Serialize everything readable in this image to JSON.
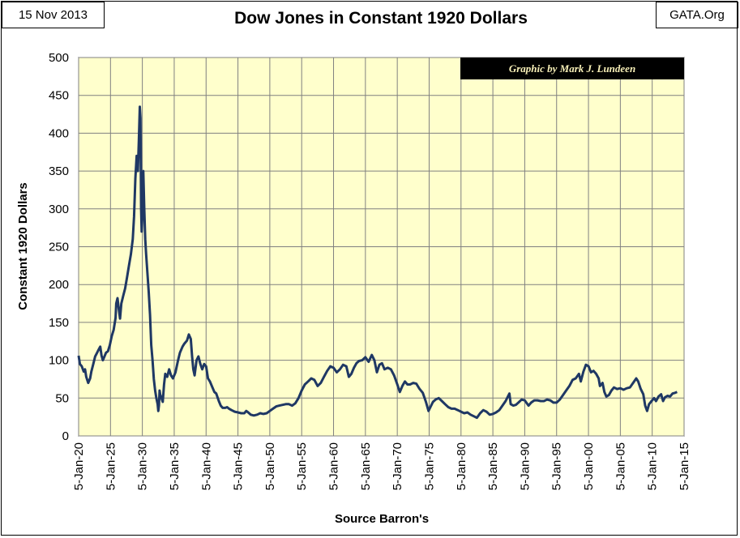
{
  "header": {
    "date": "15 Nov 2013",
    "source": "GATA.Org",
    "title": "Dow Jones in Constant 1920 Dollars"
  },
  "credit": "Graphic by Mark J. Lundeen",
  "colors": {
    "plot_background": "#ffffcc",
    "line": "#1f3864",
    "grid": "#808080",
    "credit_box": "#000000"
  },
  "chart_data": {
    "type": "line",
    "title": "Dow Jones in Constant 1920 Dollars",
    "xlabel": "Source Barron's",
    "ylabel": "Constant 1920 Dollars",
    "xlim": [
      1920,
      2015
    ],
    "ylim": [
      0,
      500
    ],
    "yticks": [
      0,
      50,
      100,
      150,
      200,
      250,
      300,
      350,
      400,
      450,
      500
    ],
    "xticks": [
      {
        "x": 1920,
        "label": "5-Jan-20"
      },
      {
        "x": 1925,
        "label": "5-Jan-25"
      },
      {
        "x": 1930,
        "label": "5-Jan-30"
      },
      {
        "x": 1935,
        "label": "5-Jan-35"
      },
      {
        "x": 1940,
        "label": "5-Jan-40"
      },
      {
        "x": 1945,
        "label": "5-Jan-45"
      },
      {
        "x": 1950,
        "label": "5-Jan-50"
      },
      {
        "x": 1955,
        "label": "5-Jan-55"
      },
      {
        "x": 1960,
        "label": "5-Jan-60"
      },
      {
        "x": 1965,
        "label": "5-Jan-65"
      },
      {
        "x": 1970,
        "label": "5-Jan-70"
      },
      {
        "x": 1975,
        "label": "5-Jan-75"
      },
      {
        "x": 1980,
        "label": "5-Jan-80"
      },
      {
        "x": 1985,
        "label": "5-Jan-85"
      },
      {
        "x": 1990,
        "label": "5-Jan-90"
      },
      {
        "x": 1995,
        "label": "5-Jan-95"
      },
      {
        "x": 2000,
        "label": "5-Jan-00"
      },
      {
        "x": 2005,
        "label": "5-Jan-05"
      },
      {
        "x": 2010,
        "label": "5-Jan-10"
      },
      {
        "x": 2015,
        "label": "5-Jan-15"
      }
    ],
    "grid": true,
    "series": [
      {
        "values": [
          [
            1920.0,
            106
          ],
          [
            1920.2,
            95
          ],
          [
            1920.5,
            92
          ],
          [
            1920.8,
            85
          ],
          [
            1921.0,
            88
          ],
          [
            1921.2,
            78
          ],
          [
            1921.5,
            70
          ],
          [
            1921.8,
            76
          ],
          [
            1922.0,
            85
          ],
          [
            1922.3,
            95
          ],
          [
            1922.6,
            105
          ],
          [
            1922.9,
            110
          ],
          [
            1923.2,
            115
          ],
          [
            1923.4,
            118
          ],
          [
            1923.6,
            106
          ],
          [
            1923.8,
            100
          ],
          [
            1924.0,
            104
          ],
          [
            1924.3,
            110
          ],
          [
            1924.6,
            112
          ],
          [
            1924.9,
            120
          ],
          [
            1925.2,
            132
          ],
          [
            1925.5,
            140
          ],
          [
            1925.8,
            156
          ],
          [
            1925.9,
            175
          ],
          [
            1926.1,
            182
          ],
          [
            1926.3,
            168
          ],
          [
            1926.5,
            155
          ],
          [
            1926.7,
            175
          ],
          [
            1927.0,
            185
          ],
          [
            1927.3,
            195
          ],
          [
            1927.6,
            210
          ],
          [
            1927.9,
            225
          ],
          [
            1928.2,
            240
          ],
          [
            1928.5,
            260
          ],
          [
            1928.7,
            290
          ],
          [
            1928.9,
            340
          ],
          [
            1929.1,
            370
          ],
          [
            1929.3,
            350
          ],
          [
            1929.45,
            390
          ],
          [
            1929.6,
            435
          ],
          [
            1929.7,
            420
          ],
          [
            1929.8,
            300
          ],
          [
            1929.9,
            270
          ],
          [
            1930.0,
            290
          ],
          [
            1930.15,
            350
          ],
          [
            1930.3,
            300
          ],
          [
            1930.45,
            260
          ],
          [
            1930.6,
            240
          ],
          [
            1930.8,
            215
          ],
          [
            1931.0,
            190
          ],
          [
            1931.2,
            160
          ],
          [
            1931.4,
            120
          ],
          [
            1931.6,
            100
          ],
          [
            1931.8,
            75
          ],
          [
            1932.0,
            60
          ],
          [
            1932.2,
            50
          ],
          [
            1932.4,
            42
          ],
          [
            1932.5,
            33
          ],
          [
            1932.6,
            40
          ],
          [
            1932.7,
            60
          ],
          [
            1932.8,
            55
          ],
          [
            1933.0,
            50
          ],
          [
            1933.2,
            45
          ],
          [
            1933.4,
            68
          ],
          [
            1933.6,
            82
          ],
          [
            1933.9,
            78
          ],
          [
            1934.2,
            88
          ],
          [
            1934.5,
            80
          ],
          [
            1934.8,
            76
          ],
          [
            1935.2,
            84
          ],
          [
            1935.6,
            100
          ],
          [
            1935.9,
            110
          ],
          [
            1936.3,
            118
          ],
          [
            1936.6,
            122
          ],
          [
            1937.0,
            126
          ],
          [
            1937.3,
            134
          ],
          [
            1937.6,
            128
          ],
          [
            1937.8,
            105
          ],
          [
            1938.0,
            88
          ],
          [
            1938.2,
            80
          ],
          [
            1938.5,
            100
          ],
          [
            1938.8,
            105
          ],
          [
            1939.1,
            95
          ],
          [
            1939.4,
            88
          ],
          [
            1939.7,
            95
          ],
          [
            1940.0,
            92
          ],
          [
            1940.3,
            76
          ],
          [
            1940.6,
            72
          ],
          [
            1941.0,
            64
          ],
          [
            1941.3,
            58
          ],
          [
            1941.6,
            56
          ],
          [
            1942.0,
            46
          ],
          [
            1942.3,
            40
          ],
          [
            1942.6,
            37
          ],
          [
            1943.0,
            37
          ],
          [
            1943.3,
            38
          ],
          [
            1943.6,
            36
          ],
          [
            1944.0,
            34
          ],
          [
            1944.5,
            32
          ],
          [
            1945.0,
            31
          ],
          [
            1945.5,
            30
          ],
          [
            1946.0,
            30
          ],
          [
            1946.3,
            33
          ],
          [
            1946.6,
            31
          ],
          [
            1947.0,
            28
          ],
          [
            1947.5,
            27
          ],
          [
            1948.0,
            28
          ],
          [
            1948.5,
            30
          ],
          [
            1949.0,
            29
          ],
          [
            1949.5,
            30
          ],
          [
            1950.0,
            33
          ],
          [
            1950.5,
            36
          ],
          [
            1951.0,
            39
          ],
          [
            1951.5,
            40
          ],
          [
            1952.0,
            41
          ],
          [
            1952.5,
            42
          ],
          [
            1953.0,
            42
          ],
          [
            1953.5,
            40
          ],
          [
            1954.0,
            43
          ],
          [
            1954.5,
            50
          ],
          [
            1955.0,
            60
          ],
          [
            1955.5,
            68
          ],
          [
            1956.0,
            72
          ],
          [
            1956.5,
            76
          ],
          [
            1957.0,
            74
          ],
          [
            1957.5,
            66
          ],
          [
            1958.0,
            70
          ],
          [
            1958.5,
            78
          ],
          [
            1959.0,
            86
          ],
          [
            1959.5,
            92
          ],
          [
            1960.0,
            90
          ],
          [
            1960.5,
            84
          ],
          [
            1961.0,
            88
          ],
          [
            1961.5,
            94
          ],
          [
            1962.0,
            92
          ],
          [
            1962.4,
            78
          ],
          [
            1962.8,
            82
          ],
          [
            1963.2,
            90
          ],
          [
            1963.6,
            96
          ],
          [
            1964.0,
            99
          ],
          [
            1964.5,
            100
          ],
          [
            1965.0,
            104
          ],
          [
            1965.5,
            98
          ],
          [
            1966.0,
            107
          ],
          [
            1966.4,
            100
          ],
          [
            1966.8,
            84
          ],
          [
            1967.2,
            94
          ],
          [
            1967.6,
            96
          ],
          [
            1968.0,
            88
          ],
          [
            1968.5,
            90
          ],
          [
            1969.0,
            88
          ],
          [
            1969.5,
            80
          ],
          [
            1970.0,
            68
          ],
          [
            1970.4,
            58
          ],
          [
            1970.8,
            66
          ],
          [
            1971.2,
            72
          ],
          [
            1971.6,
            68
          ],
          [
            1972.0,
            68
          ],
          [
            1972.5,
            70
          ],
          [
            1973.0,
            69
          ],
          [
            1973.5,
            62
          ],
          [
            1974.0,
            57
          ],
          [
            1974.5,
            45
          ],
          [
            1974.9,
            33
          ],
          [
            1975.2,
            38
          ],
          [
            1975.6,
            45
          ],
          [
            1976.0,
            48
          ],
          [
            1976.5,
            50
          ],
          [
            1977.0,
            46
          ],
          [
            1977.5,
            42
          ],
          [
            1978.0,
            38
          ],
          [
            1978.5,
            36
          ],
          [
            1979.0,
            36
          ],
          [
            1979.5,
            34
          ],
          [
            1980.0,
            32
          ],
          [
            1980.5,
            30
          ],
          [
            1981.0,
            31
          ],
          [
            1981.5,
            28
          ],
          [
            1982.0,
            26
          ],
          [
            1982.5,
            24
          ],
          [
            1983.0,
            30
          ],
          [
            1983.5,
            34
          ],
          [
            1984.0,
            32
          ],
          [
            1984.5,
            28
          ],
          [
            1985.0,
            29
          ],
          [
            1985.5,
            31
          ],
          [
            1986.0,
            34
          ],
          [
            1986.5,
            40
          ],
          [
            1987.0,
            46
          ],
          [
            1987.6,
            56
          ],
          [
            1987.8,
            42
          ],
          [
            1988.2,
            40
          ],
          [
            1988.6,
            41
          ],
          [
            1989.0,
            44
          ],
          [
            1989.5,
            48
          ],
          [
            1990.0,
            47
          ],
          [
            1990.6,
            40
          ],
          [
            1991.0,
            44
          ],
          [
            1991.5,
            47
          ],
          [
            1992.0,
            47
          ],
          [
            1992.5,
            46
          ],
          [
            1993.0,
            46
          ],
          [
            1993.5,
            48
          ],
          [
            1994.0,
            47
          ],
          [
            1994.5,
            44
          ],
          [
            1995.0,
            44
          ],
          [
            1995.5,
            48
          ],
          [
            1996.0,
            54
          ],
          [
            1996.5,
            60
          ],
          [
            1997.0,
            66
          ],
          [
            1997.5,
            74
          ],
          [
            1998.0,
            76
          ],
          [
            1998.5,
            82
          ],
          [
            1998.8,
            72
          ],
          [
            1999.2,
            85
          ],
          [
            1999.6,
            94
          ],
          [
            2000.0,
            92
          ],
          [
            2000.4,
            84
          ],
          [
            2000.8,
            86
          ],
          [
            2001.2,
            82
          ],
          [
            2001.6,
            76
          ],
          [
            2001.8,
            66
          ],
          [
            2002.2,
            70
          ],
          [
            2002.5,
            58
          ],
          [
            2002.8,
            52
          ],
          [
            2003.2,
            54
          ],
          [
            2003.6,
            60
          ],
          [
            2004.0,
            64
          ],
          [
            2004.5,
            62
          ],
          [
            2005.0,
            63
          ],
          [
            2005.5,
            61
          ],
          [
            2006.0,
            63
          ],
          [
            2006.5,
            64
          ],
          [
            2007.0,
            70
          ],
          [
            2007.5,
            76
          ],
          [
            2007.8,
            72
          ],
          [
            2008.2,
            62
          ],
          [
            2008.6,
            55
          ],
          [
            2008.9,
            40
          ],
          [
            2009.2,
            33
          ],
          [
            2009.5,
            42
          ],
          [
            2009.9,
            46
          ],
          [
            2010.3,
            50
          ],
          [
            2010.6,
            46
          ],
          [
            2011.0,
            52
          ],
          [
            2011.4,
            55
          ],
          [
            2011.7,
            46
          ],
          [
            2012.0,
            51
          ],
          [
            2012.4,
            53
          ],
          [
            2012.8,
            52
          ],
          [
            2013.2,
            56
          ],
          [
            2013.6,
            57
          ],
          [
            2013.9,
            58
          ]
        ]
      }
    ]
  }
}
